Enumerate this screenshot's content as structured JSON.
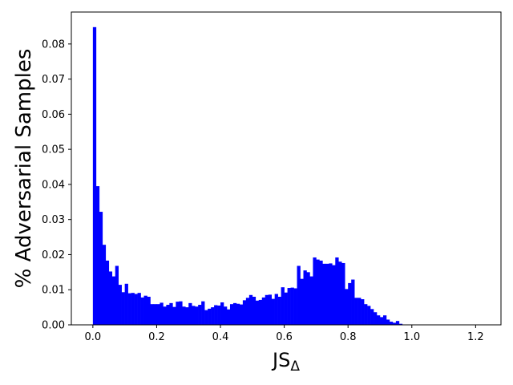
{
  "chart_data": {
    "type": "histogram",
    "title": "",
    "xlabel": "JS",
    "xlabel_subscript": "Δ",
    "ylabel": "% Adversarial Samples",
    "xlim": [
      -0.0675,
      1.2795
    ],
    "ylim": [
      0,
      0.0891
    ],
    "bin_width": 0.01,
    "bin_start": 0.0,
    "bar_color": "#0000ff",
    "grid": false,
    "legend": "none",
    "xticks": [
      0.0,
      0.2,
      0.4,
      0.6,
      0.8,
      1.0,
      1.2
    ],
    "xtick_labels": [
      "0.0",
      "0.2",
      "0.4",
      "0.6",
      "0.8",
      "1.0",
      "1.2"
    ],
    "yticks": [
      0.0,
      0.01,
      0.02,
      0.03,
      0.04,
      0.05,
      0.06,
      0.07,
      0.08
    ],
    "ytick_labels": [
      "0.00",
      "0.01",
      "0.02",
      "0.03",
      "0.04",
      "0.05",
      "0.06",
      "0.07",
      "0.08"
    ],
    "values": [
      0.0848,
      0.0395,
      0.0322,
      0.0228,
      0.0183,
      0.0152,
      0.0138,
      0.0168,
      0.0114,
      0.0093,
      0.0117,
      0.009,
      0.0091,
      0.0088,
      0.0091,
      0.0078,
      0.0083,
      0.008,
      0.0059,
      0.0059,
      0.0059,
      0.0063,
      0.0052,
      0.0057,
      0.0062,
      0.0051,
      0.0066,
      0.0067,
      0.0052,
      0.005,
      0.0062,
      0.0054,
      0.0052,
      0.0057,
      0.0067,
      0.0042,
      0.0046,
      0.005,
      0.0056,
      0.0055,
      0.0064,
      0.0052,
      0.0044,
      0.0059,
      0.0062,
      0.006,
      0.0058,
      0.007,
      0.0077,
      0.0085,
      0.008,
      0.0069,
      0.0071,
      0.0078,
      0.0085,
      0.0086,
      0.0074,
      0.0088,
      0.008,
      0.0107,
      0.0092,
      0.0105,
      0.0106,
      0.0104,
      0.0168,
      0.0131,
      0.0155,
      0.015,
      0.0138,
      0.0192,
      0.0186,
      0.0183,
      0.0174,
      0.0174,
      0.0175,
      0.017,
      0.0192,
      0.018,
      0.0176,
      0.0102,
      0.0119,
      0.0129,
      0.0077,
      0.0077,
      0.0073,
      0.0059,
      0.0054,
      0.0045,
      0.0036,
      0.0027,
      0.0022,
      0.0027,
      0.0015,
      0.0009,
      0.0006,
      0.0011,
      0.0003,
      0.0001,
      0.0001,
      0.0001
    ]
  }
}
